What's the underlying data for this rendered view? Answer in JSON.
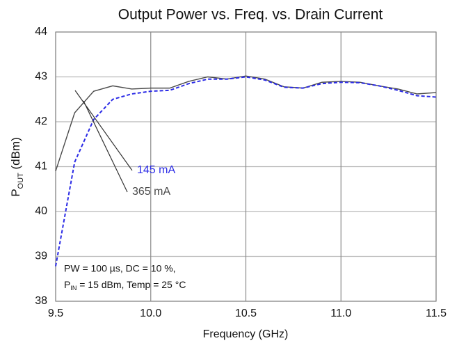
{
  "chart_data": {
    "type": "line",
    "title": "Output Power vs. Freq. vs. Drain Current",
    "xlabel": "Frequency (GHz)",
    "ylabel_parts": [
      "P",
      "OUT",
      " (dBm)"
    ],
    "x": [
      9.5,
      9.6,
      9.7,
      9.8,
      9.9,
      10.0,
      10.1,
      10.2,
      10.3,
      10.4,
      10.5,
      10.6,
      10.7,
      10.8,
      10.9,
      11.0,
      11.1,
      11.2,
      11.3,
      11.4,
      11.5
    ],
    "series": [
      {
        "name": "365 mA",
        "color": "#4a4a4a",
        "dashed": false,
        "values": [
          40.9,
          42.2,
          42.68,
          42.8,
          42.73,
          42.75,
          42.75,
          42.9,
          43.0,
          42.95,
          43.02,
          42.95,
          42.78,
          42.75,
          42.88,
          42.9,
          42.88,
          42.8,
          42.73,
          42.62,
          42.65
        ]
      },
      {
        "name": "145 mA",
        "color": "#2a2ae6",
        "dashed": true,
        "values": [
          38.78,
          41.1,
          42.05,
          42.5,
          42.62,
          42.68,
          42.7,
          42.85,
          42.95,
          42.95,
          43.0,
          42.93,
          42.77,
          42.75,
          42.85,
          42.88,
          42.87,
          42.8,
          42.7,
          42.58,
          42.55
        ]
      }
    ],
    "note_line1": "PW = 100 µs, DC = 10 %,",
    "note_line2_parts": [
      "P",
      "IN",
      " = 15 dBm, Temp = 25 °C"
    ],
    "xlim": [
      9.5,
      11.5
    ],
    "xticks": [
      9.5,
      {
        "value": 10,
        "label": "10.0"
      },
      10.5,
      {
        "value": 11,
        "label": "11.0"
      },
      11.5
    ],
    "ylim": [
      38,
      44
    ],
    "yticks": [
      38,
      39,
      40,
      41,
      42,
      43,
      44
    ],
    "grid": true
  }
}
